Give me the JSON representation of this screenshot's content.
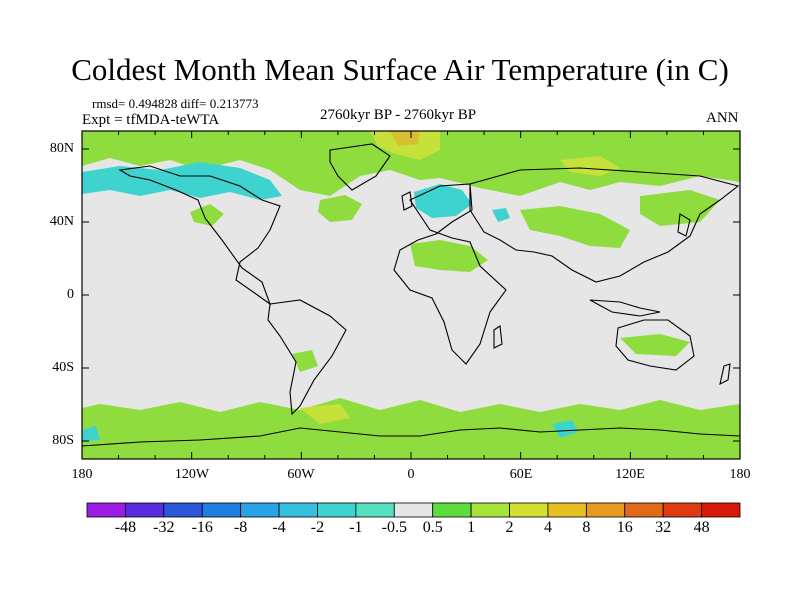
{
  "title": "Coldest Month Mean Surface Air Temperature (in C)",
  "stats": {
    "rmsd_diff": "rmsd= 0.494828 diff= 0.213773",
    "expt": "Expt = tfMDA-teWTA",
    "period": "2760kyr BP - 2760kyr BP",
    "season": "ANN"
  },
  "axes": {
    "lat_labels": [
      "80N",
      "40N",
      "0",
      "40S",
      "80S"
    ],
    "lon_labels": [
      "180",
      "120W",
      "60W",
      "0",
      "60E",
      "120E",
      "180"
    ]
  },
  "colorbar": {
    "labels": [
      "-48",
      "-32",
      "-16",
      "-8",
      "-4",
      "-2",
      "-1",
      "-0.5",
      "0.5",
      "1",
      "2",
      "4",
      "8",
      "16",
      "32",
      "48"
    ],
    "colors": [
      "#9b1de5",
      "#5a2be0",
      "#2c57d8",
      "#1f7fe0",
      "#2aa3e6",
      "#36c0e0",
      "#3fd3cf",
      "#55e0c0",
      "#e6e6e6",
      "#5edc3e",
      "#a6e43a",
      "#d3e030",
      "#e6c020",
      "#e69a20",
      "#e06a1a",
      "#e03a10",
      "#d81a0a"
    ]
  },
  "map": {
    "background": "#e6e6e6",
    "positive_color": "#8fdc3e",
    "light_positive_color": "#c6e23a",
    "warm_color": "#d8c030",
    "negative_color": "#3fd3cf"
  }
}
